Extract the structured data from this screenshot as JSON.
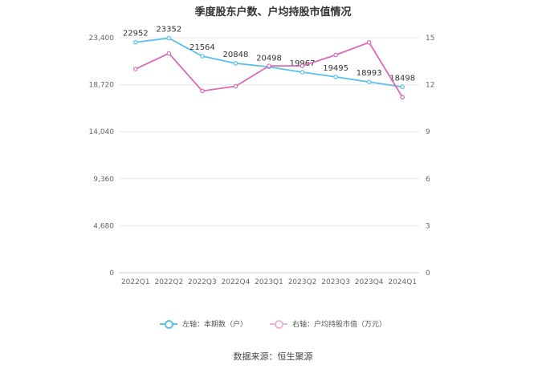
{
  "chart_data": {
    "type": "line",
    "title": "季度股东户数、户均持股市值情况",
    "categories": [
      "2022Q1",
      "2022Q2",
      "2022Q3",
      "2022Q4",
      "2023Q1",
      "2023Q2",
      "2023Q3",
      "2023Q4",
      "2024Q1"
    ],
    "left_axis": {
      "ticks": [
        0,
        4680,
        9360,
        14040,
        18720,
        23400
      ],
      "tick_labels": [
        "0",
        "4,680",
        "9,360",
        "14,040",
        "18,720",
        "23,400"
      ],
      "ylim": [
        0,
        23400
      ]
    },
    "right_axis": {
      "ticks": [
        0,
        3,
        6,
        9,
        12,
        15
      ],
      "tick_labels": [
        "0",
        "3",
        "6",
        "9",
        "12",
        "15"
      ],
      "ylim": [
        0,
        15
      ]
    },
    "series": [
      {
        "name": "左轴：本期数（户）",
        "axis": "left",
        "color": "#5bc0eb",
        "values": [
          22952,
          23352,
          21564,
          20848,
          20498,
          19967,
          19495,
          18993,
          18498
        ],
        "labels": [
          "22952",
          "23352",
          "21564",
          "20848",
          "20498",
          "19967",
          "19495",
          "18993",
          "18498"
        ]
      },
      {
        "name": "右轴：户均持股市值（万元）",
        "axis": "right",
        "color": "#d96bb8",
        "values": [
          13.0,
          14.0,
          11.6,
          11.9,
          13.2,
          13.2,
          13.9,
          14.7,
          11.2
        ]
      }
    ],
    "grid": true,
    "legend": "bottom-center"
  },
  "source_text": "数据来源：恒生聚源"
}
